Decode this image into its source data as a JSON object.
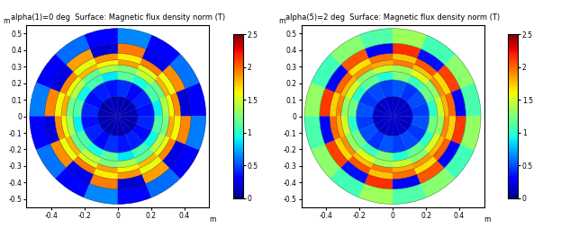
{
  "chart_data": [
    {
      "type": "heatmap",
      "title": "alpha(1)=0 deg  Surface: Magnetic flux density norm (T)",
      "xlabel": "m",
      "ylabel": "m",
      "xlim": [
        -0.55,
        0.55
      ],
      "ylim": [
        -0.55,
        0.55
      ],
      "xticks": [
        -0.4,
        -0.2,
        0,
        0.2,
        0.4
      ],
      "yticks": [
        -0.5,
        -0.4,
        -0.3,
        -0.2,
        -0.1,
        0,
        0.1,
        0.2,
        0.3,
        0.4,
        0.5
      ],
      "color": "jet",
      "r_edges": [
        0,
        0.12,
        0.22,
        0.27,
        0.31,
        0.34,
        0.38,
        0.44,
        0.53
      ],
      "cells": [
        [
          0.1,
          0.12,
          0.09,
          0.11,
          0.1,
          0.13,
          0.08,
          0.11,
          0.1,
          0.12,
          0.09,
          0.11,
          0.1,
          0.13,
          0.08,
          0.11
        ],
        [
          0.35,
          0.4,
          0.33,
          0.42,
          0.36,
          0.39,
          0.34,
          0.41,
          0.35,
          0.4,
          0.33,
          0.42,
          0.36,
          0.39,
          0.34,
          0.41
        ],
        [
          0.9,
          1.1,
          0.95,
          1.15,
          0.88,
          1.08,
          0.92,
          1.12,
          0.9,
          1.1,
          0.95,
          1.15,
          0.88,
          1.08,
          0.92,
          1.12
        ],
        [
          1.4,
          1.2,
          1.45,
          1.25,
          1.38,
          1.18,
          1.42,
          1.22,
          1.4,
          1.2,
          1.45,
          1.25,
          1.38,
          1.18,
          1.42,
          1.22
        ],
        [
          1.6,
          1.8,
          1.55,
          1.85,
          1.62,
          1.78,
          1.58,
          1.82,
          1.6,
          1.8,
          1.55,
          1.85,
          1.62,
          1.78,
          1.58,
          1.82
        ],
        [
          1.9,
          1.6,
          1.95,
          1.65,
          1.88,
          1.58,
          1.92,
          1.62,
          1.9,
          1.6,
          1.95,
          1.65,
          1.88,
          1.58,
          1.92,
          1.62
        ],
        [
          0.2,
          1.9,
          0.25,
          1.95,
          0.18,
          1.85,
          0.22,
          1.92,
          0.2,
          1.9,
          0.25,
          1.95,
          0.18,
          1.85,
          0.22,
          1.92
        ],
        [
          0.3,
          0.6,
          0.28,
          0.65,
          0.32,
          0.58,
          0.27,
          0.62,
          0.3,
          0.6,
          0.28,
          0.65,
          0.32,
          0.58,
          0.27,
          0.62
        ]
      ],
      "colorbar_range": [
        0,
        2.5
      ],
      "colorbar_ticks": [
        0,
        0.5,
        1,
        1.5,
        2,
        2.5
      ]
    },
    {
      "type": "heatmap",
      "title": "alpha(5)=2 deg  Surface: Magnetic flux density norm (T)",
      "xlabel": "m",
      "ylabel": "m",
      "xlim": [
        -0.55,
        0.55
      ],
      "ylim": [
        -0.55,
        0.55
      ],
      "xticks": [
        -0.4,
        -0.2,
        0,
        0.2,
        0.4
      ],
      "yticks": [
        -0.5,
        -0.4,
        -0.3,
        -0.2,
        -0.1,
        0,
        0.1,
        0.2,
        0.3,
        0.4,
        0.5
      ],
      "color": "jet",
      "r_edges": [
        0,
        0.12,
        0.22,
        0.27,
        0.31,
        0.34,
        0.38,
        0.44,
        0.53
      ],
      "cells": [
        [
          0.15,
          0.17,
          0.14,
          0.16,
          0.15,
          0.18,
          0.13,
          0.16,
          0.15,
          0.17,
          0.14,
          0.16,
          0.15,
          0.18,
          0.13,
          0.16
        ],
        [
          0.45,
          0.5,
          0.43,
          0.52,
          0.46,
          0.49,
          0.44,
          0.51,
          0.45,
          0.5,
          0.43,
          0.52,
          0.46,
          0.49,
          0.44,
          0.51
        ],
        [
          1.0,
          1.2,
          1.05,
          1.25,
          0.98,
          1.18,
          1.02,
          1.22,
          1.0,
          1.2,
          1.05,
          1.25,
          0.98,
          1.18,
          1.02,
          1.22
        ],
        [
          1.5,
          1.3,
          1.55,
          1.35,
          1.48,
          1.28,
          1.52,
          1.32,
          1.5,
          1.3,
          1.55,
          1.35,
          1.48,
          1.28,
          1.52,
          1.32
        ],
        [
          1.8,
          1.9,
          1.75,
          1.95,
          1.82,
          1.88,
          1.78,
          1.92,
          1.8,
          1.9,
          1.75,
          1.95,
          1.82,
          1.88,
          1.78,
          1.92
        ],
        [
          2.0,
          1.7,
          2.05,
          1.75,
          1.98,
          1.68,
          2.02,
          1.72,
          2.0,
          1.7,
          2.05,
          1.75,
          1.98,
          1.68,
          2.02,
          1.72
        ],
        [
          0.3,
          2.1,
          0.35,
          2.15,
          0.28,
          2.05,
          0.32,
          2.12,
          0.3,
          2.1,
          0.35,
          2.15,
          0.28,
          2.05,
          0.32,
          2.12
        ],
        [
          1.1,
          1.3,
          1.08,
          1.35,
          1.12,
          1.28,
          1.07,
          1.32,
          1.1,
          1.3,
          1.08,
          1.35,
          1.12,
          1.28,
          1.07,
          1.32
        ]
      ],
      "colorbar_range": [
        0,
        2.5
      ],
      "colorbar_ticks": [
        0,
        0.5,
        1,
        1.5,
        2,
        2.5
      ]
    }
  ]
}
